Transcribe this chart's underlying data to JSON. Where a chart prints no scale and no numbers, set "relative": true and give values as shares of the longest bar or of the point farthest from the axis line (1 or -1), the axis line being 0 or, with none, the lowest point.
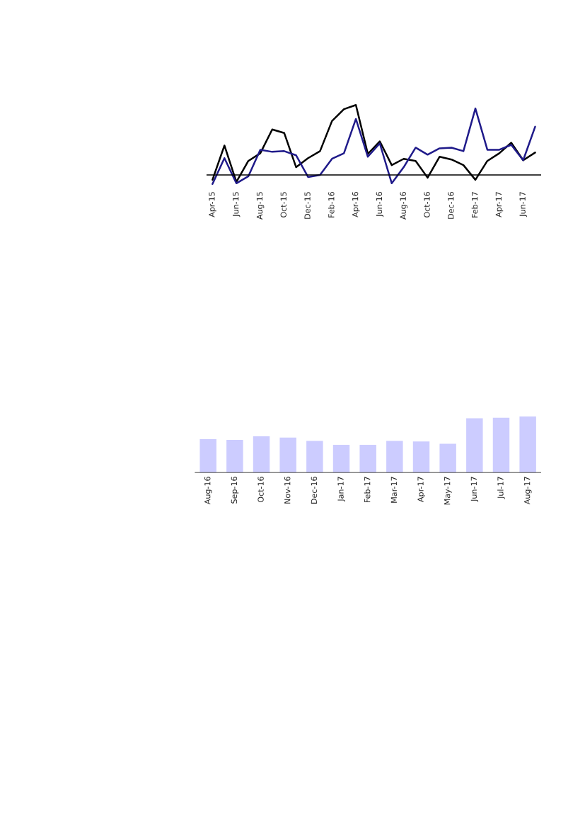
{
  "chart_data": [
    {
      "type": "line",
      "relative": true,
      "categories": [
        "Apr-15",
        null,
        "Jun-15",
        null,
        "Aug-15",
        null,
        "Oct-15",
        null,
        "Dec-15",
        null,
        "Feb-16",
        null,
        "Apr-16",
        null,
        "Jun-16",
        null,
        "Aug-16",
        null,
        "Oct-16",
        null,
        "Dec-16",
        null,
        "Feb-17",
        null,
        "Apr-17",
        null,
        "Jun-17",
        null
      ],
      "series": [
        {
          "color": "#000000",
          "values": [
            -0.07,
            0.42,
            -0.1,
            0.2,
            0.31,
            0.65,
            0.6,
            0.11,
            0.24,
            0.34,
            0.77,
            0.94,
            1,
            0.3,
            0.48,
            0.14,
            0.23,
            0.2,
            -0.04,
            0.26,
            0.22,
            0.14,
            -0.07,
            0.2,
            0.31,
            0.46,
            0.21,
            0.32
          ]
        },
        {
          "color": "#1f1a8a",
          "values": [
            -0.13,
            0.24,
            -0.12,
            -0.02,
            0.36,
            0.33,
            0.34,
            0.28,
            -0.03,
            0.0,
            0.23,
            0.31,
            0.8,
            0.26,
            0.45,
            -0.12,
            0.11,
            0.39,
            0.29,
            0.38,
            0.39,
            0.34,
            0.95,
            0.36,
            0.36,
            0.43,
            0.21,
            0.69
          ]
        }
      ]
    },
    {
      "type": "bar",
      "relative": true,
      "color": "#ccccff",
      "categories": [
        "Aug-16",
        "Sep-16",
        "Oct-16",
        "Nov-16",
        "Dec-16",
        "Jan-17",
        "Feb-17",
        "Mar-17",
        "Apr-17",
        "May-17",
        "Jun-17",
        "Jul-17",
        "Aug-17"
      ],
      "values": [
        0.6,
        0.59,
        0.65,
        0.63,
        0.57,
        0.5,
        0.5,
        0.57,
        0.56,
        0.52,
        0.97,
        0.98,
        1
      ]
    }
  ]
}
